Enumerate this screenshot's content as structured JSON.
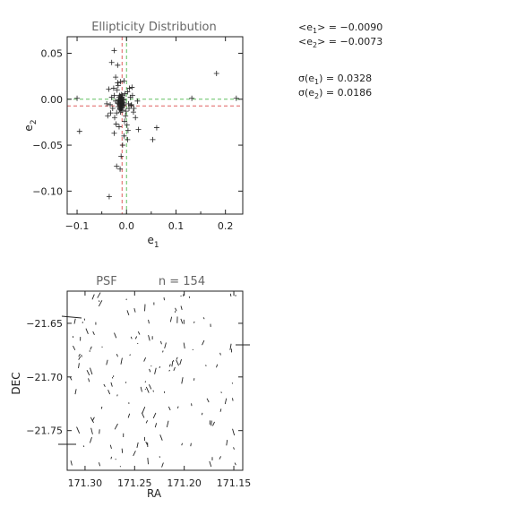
{
  "chart_data": [
    {
      "type": "scatter",
      "title": "Ellipticity Distribution",
      "xlabel": "e1",
      "ylabel": "e2",
      "xlim": [
        -0.12,
        0.235
      ],
      "ylim": [
        -0.125,
        0.068
      ],
      "xticks": [
        -0.1,
        0.0,
        0.1,
        0.2
      ],
      "xtick_labels": [
        "−0.1",
        "0.0",
        "0.1",
        "0.2"
      ],
      "yticks": [
        0.05,
        0.0,
        -0.05,
        -0.1
      ],
      "ytick_labels": [
        "0.05",
        "0.00",
        "−0.05",
        "−0.10"
      ],
      "grid": false,
      "marker": "plus",
      "mean_lines": {
        "red": {
          "e1": -0.009,
          "e2": -0.0073,
          "color": "#e06060"
        },
        "green": {
          "e1": 0.0,
          "e2": 0.0,
          "color": "#60c060"
        }
      },
      "points": [
        [
          -0.012,
          -0.004
        ],
        [
          -0.01,
          -0.002
        ],
        [
          -0.014,
          -0.006
        ],
        [
          -0.008,
          -0.003
        ],
        [
          -0.011,
          0.001
        ],
        [
          -0.013,
          -0.008
        ],
        [
          -0.009,
          -0.005
        ],
        [
          -0.015,
          -0.002
        ],
        [
          -0.007,
          -0.007
        ],
        [
          -0.012,
          0.003
        ],
        [
          -0.01,
          -0.01
        ],
        [
          -0.016,
          -0.005
        ],
        [
          -0.006,
          -0.001
        ],
        [
          -0.013,
          0.0
        ],
        [
          -0.011,
          -0.006
        ],
        [
          -0.009,
          0.002
        ],
        [
          -0.014,
          -0.011
        ],
        [
          -0.008,
          -0.009
        ],
        [
          -0.012,
          -0.001
        ],
        [
          -0.01,
          0.005
        ],
        [
          -0.017,
          -0.008
        ],
        [
          -0.006,
          -0.004
        ],
        [
          -0.013,
          -0.003
        ],
        [
          -0.011,
          -0.012
        ],
        [
          -0.009,
          -0.007
        ],
        [
          -0.015,
          0.002
        ],
        [
          -0.007,
          0.0
        ],
        [
          -0.012,
          -0.009
        ],
        [
          -0.01,
          -0.004
        ],
        [
          -0.014,
          0.004
        ],
        [
          -0.008,
          -0.012
        ],
        [
          -0.016,
          -0.001
        ],
        [
          -0.012,
          -0.006
        ],
        [
          -0.01,
          0.001
        ],
        [
          -0.011,
          -0.003
        ],
        [
          -0.013,
          -0.01
        ],
        [
          -0.005,
          -0.006
        ],
        [
          -0.018,
          -0.004
        ],
        [
          -0.009,
          0.004
        ],
        [
          -0.012,
          -0.014
        ],
        [
          -0.025,
          0.004
        ],
        [
          -0.02,
          -0.015
        ],
        [
          0.005,
          -0.01
        ],
        [
          -0.003,
          0.006
        ],
        [
          -0.022,
          -0.002
        ],
        [
          0.008,
          0.002
        ],
        [
          -0.019,
          0.01
        ],
        [
          -0.002,
          -0.018
        ],
        [
          0.002,
          0.008
        ],
        [
          -0.028,
          -0.01
        ],
        [
          0.004,
          -0.005
        ],
        [
          -0.024,
          -0.02
        ],
        [
          -0.017,
          0.015
        ],
        [
          -0.001,
          -0.013
        ],
        [
          0.01,
          -0.006
        ],
        [
          -0.03,
          0.002
        ],
        [
          -0.021,
          -0.027
        ],
        [
          0.006,
          0.012
        ],
        [
          -0.026,
          0.012
        ],
        [
          -0.004,
          -0.024
        ],
        [
          0.012,
          0.004
        ],
        [
          -0.033,
          -0.006
        ],
        [
          -0.015,
          -0.03
        ],
        [
          0.014,
          -0.014
        ],
        [
          -0.018,
          0.018
        ],
        [
          0.001,
          -0.028
        ],
        [
          -0.04,
          -0.005
        ],
        [
          -0.038,
          -0.018
        ],
        [
          0.022,
          -0.002
        ],
        [
          -0.005,
          -0.04
        ],
        [
          -0.036,
          0.011
        ],
        [
          0.018,
          -0.02
        ],
        [
          -0.008,
          -0.05
        ],
        [
          0.024,
          -0.033
        ],
        [
          -0.011,
          -0.062
        ],
        [
          0.015,
          -0.01
        ],
        [
          -0.025,
          -0.037
        ],
        [
          -0.013,
          -0.076
        ],
        [
          -0.02,
          -0.073
        ],
        [
          0.003,
          -0.034
        ],
        [
          -0.03,
          0.04
        ],
        [
          -0.012,
          0.019
        ],
        [
          -0.018,
          0.037
        ],
        [
          -0.005,
          0.02
        ],
        [
          -0.035,
          -0.106
        ],
        [
          -0.025,
          0.053
        ],
        [
          -0.1,
          0.001
        ],
        [
          -0.095,
          -0.035
        ],
        [
          0.053,
          -0.044
        ],
        [
          0.061,
          -0.031
        ],
        [
          0.132,
          0.001
        ],
        [
          0.182,
          0.028
        ],
        [
          0.222,
          0.001
        ],
        [
          0.009,
          -0.007
        ],
        [
          -0.032,
          -0.015
        ],
        [
          0.011,
          0.013
        ],
        [
          -0.022,
          0.024
        ],
        [
          0.002,
          -0.044
        ]
      ]
    },
    {
      "type": "vector-field",
      "title": "PSF",
      "annotation": "n = 154",
      "xlabel": "RA",
      "ylabel": "DEC",
      "xlim": [
        171.318,
        171.141
      ],
      "ylim": [
        -21.787,
        -21.62
      ],
      "xticks": [
        171.3,
        171.25,
        171.2,
        171.15
      ],
      "xtick_labels": [
        "171.30",
        "171.25",
        "171.20",
        "171.15"
      ],
      "yticks": [
        -21.65,
        -21.7,
        -21.75
      ],
      "ytick_labels": [
        "−21.65",
        "−21.70",
        "−21.75"
      ],
      "grid": false,
      "count": 154
    }
  ],
  "stats": {
    "mean_e1_label": "<e",
    "mean_e1_sub": "1",
    "mean_e1_value": "> = −0.0090",
    "mean_e2_label": "<e",
    "mean_e2_sub": "2",
    "mean_e2_value": "> = −0.0073",
    "sigma_e1_label": "σ(e",
    "sigma_e1_sub": "1",
    "sigma_e1_value": ") = 0.0328",
    "sigma_e2_label": "σ(e",
    "sigma_e2_sub": "2",
    "sigma_e2_value": ") = 0.0186"
  }
}
